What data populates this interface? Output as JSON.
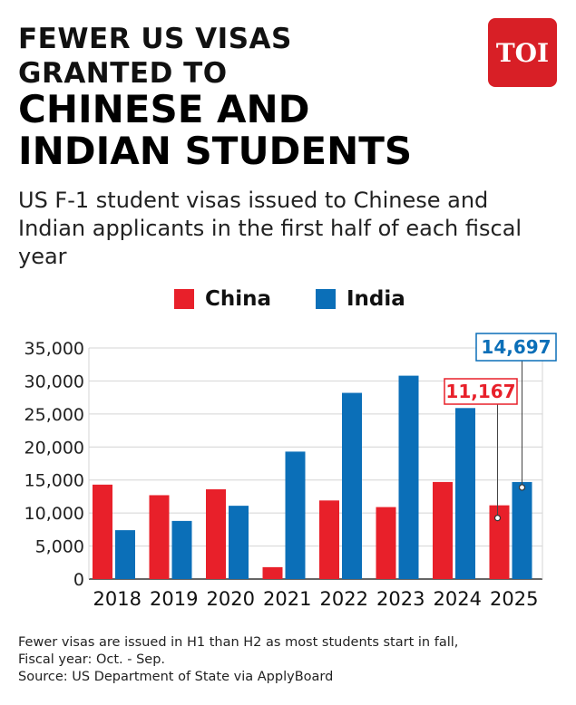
{
  "header": {
    "title_line1": "FEWER US VISAS",
    "title_line2": "GRANTED TO",
    "title_line3": "CHINESE AND",
    "title_line4": "INDIAN STUDENTS",
    "subtitle": "US F-1 student visas issued to Chinese and Indian applicants in the first half of each fiscal year",
    "logo_text": "TOI"
  },
  "legend": [
    {
      "label": "China",
      "color": "#e8202a"
    },
    {
      "label": "India",
      "color": "#0b6fb8"
    }
  ],
  "chart_data": {
    "type": "bar",
    "categories": [
      "2018",
      "2019",
      "2020",
      "2021",
      "2022",
      "2023",
      "2024",
      "2025"
    ],
    "series": [
      {
        "name": "China",
        "color": "#e8202a",
        "values": [
          14300,
          12700,
          13600,
          1800,
          11900,
          10900,
          14700,
          11167
        ]
      },
      {
        "name": "India",
        "color": "#0b6fb8",
        "values": [
          7400,
          8800,
          11100,
          19300,
          28200,
          30800,
          25900,
          14697
        ]
      }
    ],
    "ylim": [
      0,
      35000
    ],
    "yticks": [
      0,
      5000,
      10000,
      15000,
      20000,
      25000,
      30000,
      35000
    ],
    "ytick_labels": [
      "0",
      "5,000",
      "10,000",
      "15,000",
      "20,000",
      "25,000",
      "30,000",
      "35,000"
    ],
    "grid": true,
    "annotations": [
      {
        "text": "11,167",
        "series": "China",
        "category": "2025",
        "color": "#e8202a"
      },
      {
        "text": "14,697",
        "series": "India",
        "category": "2025",
        "color": "#0b6fb8"
      }
    ]
  },
  "footer": {
    "note_line1": "Fewer visas are issued in H1 than H2 as most students start in fall,",
    "note_line2": "Fiscal year: Oct. - Sep.",
    "source": "Source: US Department of State via ApplyBoard"
  }
}
